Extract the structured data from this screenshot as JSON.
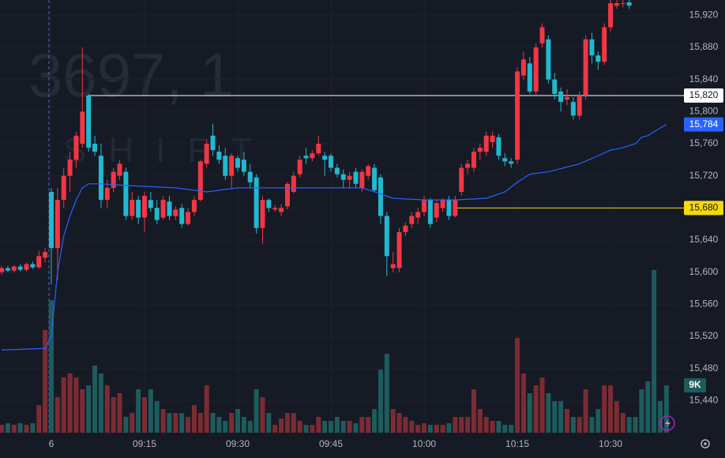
{
  "chart_data": {
    "type": "candlestick",
    "watermark": [
      "3697, 1",
      "SHIFT"
    ],
    "xlim": [
      -8.26,
      101.05
    ],
    "ylim": [
      15400,
      15939
    ],
    "xticks": [
      {
        "value": 0,
        "label": "6"
      },
      {
        "value": 15,
        "label": "09:15"
      },
      {
        "value": 30,
        "label": "09:30"
      },
      {
        "value": 45,
        "label": "09:45"
      },
      {
        "value": 60,
        "label": "10:00"
      },
      {
        "value": 75,
        "label": "10:15"
      },
      {
        "value": 90,
        "label": "10:30"
      }
    ],
    "yticks": [
      {
        "value": 15440,
        "label": "15,440"
      },
      {
        "value": 15480,
        "label": "15,480"
      },
      {
        "value": 15520,
        "label": "15,520"
      },
      {
        "value": 15560,
        "label": "15,560"
      },
      {
        "value": 15600,
        "label": "15,600"
      },
      {
        "value": 15640,
        "label": "15,640"
      },
      {
        "value": 15680,
        "label": "15,680"
      },
      {
        "value": 15720,
        "label": "15,720"
      },
      {
        "value": 15760,
        "label": "15,760"
      },
      {
        "value": 15800,
        "label": "15,800"
      },
      {
        "value": 15840,
        "label": "15,840"
      },
      {
        "value": 15880,
        "label": "15,880"
      },
      {
        "value": 15920,
        "label": "15,920"
      }
    ],
    "grid": true,
    "session_start": 0,
    "up_color": "#f23645",
    "down_color": "#22b8cf",
    "volume_up_color": "#7d2b33",
    "volume_down_color": "#1d5c5c",
    "candles": {
      "x": [
        -8,
        -7,
        -6,
        -5,
        -4,
        -3,
        -2,
        -1,
        0,
        1,
        2,
        3,
        4,
        5,
        6,
        7,
        8,
        9,
        10,
        11,
        12,
        13,
        14,
        15,
        16,
        17,
        18,
        19,
        20,
        21,
        22,
        23,
        24,
        25,
        26,
        27,
        28,
        29,
        30,
        31,
        32,
        33,
        34,
        35,
        36,
        37,
        38,
        39,
        40,
        41,
        42,
        43,
        44,
        45,
        46,
        47,
        48,
        49,
        50,
        51,
        52,
        53,
        54,
        55,
        56,
        57,
        58,
        59,
        60,
        61,
        62,
        63,
        64,
        65,
        66,
        67,
        68,
        69,
        70,
        71,
        72,
        73,
        74,
        75,
        76,
        77,
        78,
        79,
        80,
        81,
        82,
        83,
        84,
        85,
        86,
        87,
        88,
        89,
        90,
        91,
        92,
        93
      ],
      "open": [
        15600,
        15605,
        15602,
        15607,
        15603,
        15610,
        15606,
        15618,
        15700,
        15630,
        15690,
        15720,
        15740,
        15760,
        15820,
        15760,
        15745,
        15690,
        15705,
        15720,
        15725,
        15670,
        15690,
        15668,
        15690,
        15680,
        15668,
        15688,
        15670,
        15680,
        15660,
        15675,
        15690,
        15735,
        15770,
        15750,
        15745,
        15720,
        15742,
        15740,
        15725,
        15718,
        15655,
        15690,
        15678,
        15675,
        15682,
        15700,
        15722,
        15745,
        15742,
        15748,
        15745,
        15745,
        15730,
        15722,
        15715,
        15725,
        15705,
        15720,
        15730,
        15718,
        15670,
        15605,
        15605,
        15650,
        15660,
        15668,
        15675,
        15690,
        15668,
        15680,
        15690,
        15670,
        15700,
        15730,
        15730,
        15750,
        15750,
        15762,
        15768,
        15742,
        15738,
        15740,
        15845,
        15860,
        15825,
        15885,
        15890,
        15840,
        15825,
        15815,
        15812,
        15795,
        15820,
        15890,
        15870,
        15862,
        15905,
        15932,
        15935,
        15936
      ],
      "high": [
        15608,
        15608,
        15609,
        15610,
        15612,
        15613,
        15627,
        15630,
        15705,
        15705,
        15730,
        15750,
        15775,
        15880,
        15822,
        15770,
        15760,
        15715,
        15730,
        15740,
        15730,
        15700,
        15695,
        15700,
        15700,
        15690,
        15695,
        15695,
        15682,
        15685,
        15680,
        15695,
        15740,
        15765,
        15785,
        15758,
        15755,
        15748,
        15745,
        15750,
        15735,
        15722,
        15695,
        15692,
        15684,
        15685,
        15712,
        15725,
        15745,
        15755,
        15752,
        15770,
        15750,
        15748,
        15735,
        15728,
        15725,
        15730,
        15728,
        15735,
        15735,
        15722,
        15675,
        15625,
        15655,
        15662,
        15675,
        15680,
        15695,
        15692,
        15690,
        15692,
        15695,
        15695,
        15735,
        15740,
        15755,
        15760,
        15775,
        15775,
        15772,
        15748,
        15742,
        15855,
        15875,
        15868,
        15885,
        15910,
        15895,
        15848,
        15830,
        15828,
        15818,
        15825,
        15895,
        15898,
        15875,
        15910,
        15945,
        15945,
        15945,
        15945
      ],
      "low": [
        15597,
        15600,
        15600,
        15601,
        15601,
        15604,
        15604,
        15612,
        15585,
        15590,
        15680,
        15700,
        15730,
        15755,
        15750,
        15745,
        15680,
        15680,
        15700,
        15715,
        15665,
        15665,
        15660,
        15650,
        15675,
        15660,
        15665,
        15665,
        15665,
        15655,
        15658,
        15670,
        15688,
        15730,
        15745,
        15735,
        15715,
        15705,
        15725,
        15720,
        15705,
        15648,
        15635,
        15675,
        15675,
        15670,
        15678,
        15698,
        15718,
        15735,
        15738,
        15745,
        15720,
        15725,
        15718,
        15705,
        15705,
        15705,
        15700,
        15715,
        15700,
        15660,
        15595,
        15600,
        15600,
        15645,
        15655,
        15660,
        15670,
        15655,
        15662,
        15675,
        15665,
        15668,
        15695,
        15722,
        15725,
        15740,
        15745,
        15755,
        15740,
        15732,
        15730,
        15735,
        15840,
        15822,
        15820,
        15880,
        15835,
        15815,
        15800,
        15808,
        15790,
        15790,
        15815,
        15860,
        15852,
        15858,
        15900,
        15928,
        15930,
        15928
      ],
      "close": [
        15605,
        15602,
        15607,
        15603,
        15610,
        15606,
        15620,
        15625,
        15630,
        15690,
        15720,
        15740,
        15770,
        15800,
        15755,
        15750,
        15690,
        15705,
        15725,
        15735,
        15670,
        15690,
        15668,
        15695,
        15680,
        15665,
        15690,
        15670,
        15678,
        15660,
        15675,
        15690,
        15738,
        15760,
        15752,
        15740,
        15720,
        15745,
        15730,
        15725,
        15712,
        15655,
        15690,
        15680,
        15680,
        15680,
        15710,
        15720,
        15740,
        15742,
        15748,
        15760,
        15740,
        15730,
        15722,
        15715,
        15720,
        15710,
        15725,
        15732,
        15702,
        15670,
        15620,
        15610,
        15650,
        15658,
        15670,
        15675,
        15690,
        15660,
        15686,
        15690,
        15670,
        15690,
        15730,
        15735,
        15750,
        15755,
        15770,
        15770,
        15745,
        15738,
        15735,
        15850,
        15865,
        15825,
        15880,
        15905,
        15840,
        15822,
        15812,
        15818,
        15795,
        15820,
        15890,
        15870,
        15862,
        15905,
        15935,
        15935,
        15935,
        15932
      ]
    },
    "volume": {
      "lim": [
        0,
        30000
      ],
      "x": [
        -8,
        -7,
        -6,
        -5,
        -4,
        -3,
        -2,
        -1,
        0,
        1,
        2,
        3,
        4,
        5,
        6,
        7,
        8,
        9,
        10,
        11,
        12,
        13,
        14,
        15,
        16,
        17,
        18,
        19,
        20,
        21,
        22,
        23,
        24,
        25,
        26,
        27,
        28,
        29,
        30,
        31,
        32,
        33,
        34,
        35,
        36,
        37,
        38,
        39,
        40,
        41,
        42,
        43,
        44,
        45,
        46,
        47,
        48,
        49,
        50,
        51,
        52,
        53,
        54,
        55,
        56,
        57,
        58,
        59,
        60,
        61,
        62,
        63,
        64,
        65,
        66,
        67,
        68,
        69,
        70,
        71,
        72,
        73,
        74,
        75,
        76,
        77,
        78,
        79,
        80,
        81,
        82,
        83,
        84,
        85,
        86,
        87,
        88,
        89,
        90,
        91,
        92,
        93,
        94,
        95,
        96,
        97,
        98,
        99
      ],
      "values": [
        1500,
        1800,
        1500,
        1800,
        1500,
        1800,
        5250,
        19500,
        25200,
        6750,
        10500,
        11250,
        10500,
        8250,
        9000,
        12750,
        11250,
        9000,
        6750,
        7500,
        3000,
        3750,
        8250,
        6750,
        8250,
        6000,
        4500,
        3750,
        3750,
        3750,
        3000,
        5250,
        3750,
        9000,
        3750,
        3000,
        2250,
        3750,
        4500,
        3000,
        2250,
        8250,
        6750,
        3750,
        1500,
        2700,
        3750,
        3750,
        2250,
        1500,
        1500,
        3000,
        2250,
        2250,
        3000,
        2250,
        2250,
        1800,
        3000,
        3000,
        4500,
        12000,
        15000,
        4500,
        3750,
        3000,
        2250,
        1500,
        1800,
        1500,
        1500,
        1500,
        1800,
        3000,
        3000,
        3000,
        8250,
        4500,
        3000,
        2250,
        2250,
        1500,
        1500,
        18000,
        11250,
        7500,
        9000,
        10500,
        7500,
        6000,
        6000,
        4500,
        3000,
        3000,
        8250,
        3000,
        4500,
        9000,
        9000,
        6000,
        3750,
        3000,
        3000,
        8250,
        9750,
        30900,
        6000,
        9000
      ],
      "current": {
        "value": 9000,
        "label": "9K"
      }
    },
    "ma": {
      "color": "#2962ff",
      "x": [
        -8,
        -1,
        0,
        1,
        2,
        3,
        4,
        5,
        6,
        8,
        12,
        20,
        25,
        30,
        40,
        50,
        52,
        55,
        60,
        65,
        70,
        73,
        75,
        77,
        80,
        85,
        88,
        90,
        92,
        94,
        95,
        96,
        97,
        99
      ],
      "values": [
        15503,
        15505,
        15520,
        15600,
        15645,
        15670,
        15690,
        15705,
        15710,
        15710,
        15708,
        15705,
        15700,
        15705,
        15705,
        15705,
        15700,
        15692,
        15690,
        15690,
        15692,
        15700,
        15712,
        15722,
        15725,
        15735,
        15745,
        15752,
        15755,
        15760,
        15768,
        15770,
        15775,
        15784
      ],
      "current": {
        "value": 15784,
        "label": "15,784"
      }
    },
    "levels": [
      {
        "value": 15820,
        "label": "15,820",
        "color": "#ffffff",
        "start": 6
      },
      {
        "value": 15680,
        "label": "15,680",
        "color": "#f5d90a",
        "start": 65
      }
    ]
  }
}
